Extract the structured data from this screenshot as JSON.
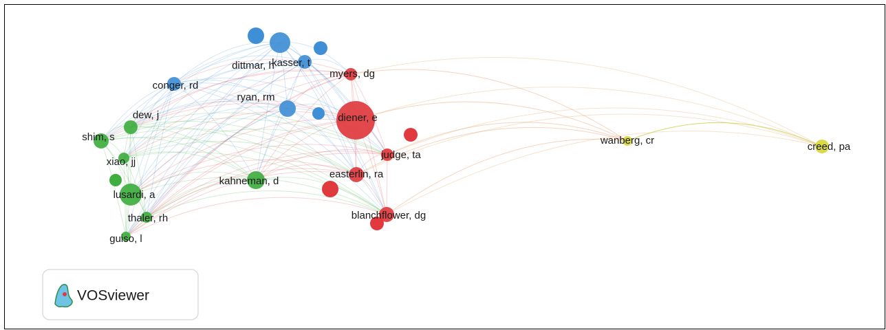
{
  "nodes": [
    {
      "label": "kasser, t",
      "color": "#3f8fd6"
    },
    {
      "label": "dittmar, h",
      "color": "#3f8fd6"
    },
    {
      "label": "myers, dg",
      "color": "#e0393e"
    },
    {
      "label": "conger, rd",
      "color": "#3f8fd6"
    },
    {
      "label": "ryan, rm",
      "color": "#3f8fd6"
    },
    {
      "label": "diener, e",
      "color": "#e0393e"
    },
    {
      "label": "dew, j",
      "color": "#3fae3f"
    },
    {
      "label": "shim, s",
      "color": "#3fae3f"
    },
    {
      "label": "xiao, jj",
      "color": "#3fae3f"
    },
    {
      "label": "judge, ta",
      "color": "#e0393e"
    },
    {
      "label": "wanberg, cr",
      "color": "#d8d83a"
    },
    {
      "label": "creed, pa",
      "color": "#d8d83a"
    },
    {
      "label": "easterlin, ra",
      "color": "#e0393e"
    },
    {
      "label": "kahneman, d",
      "color": "#3fae3f"
    },
    {
      "label": "lusardi, a",
      "color": "#3fae3f"
    },
    {
      "label": "thaler, rh",
      "color": "#3fae3f"
    },
    {
      "label": "blanchflower, dg",
      "color": "#e0393e"
    },
    {
      "label": "guiso, l",
      "color": "#3fae3f"
    }
  ],
  "logo": {
    "text": "VOSviewer"
  }
}
